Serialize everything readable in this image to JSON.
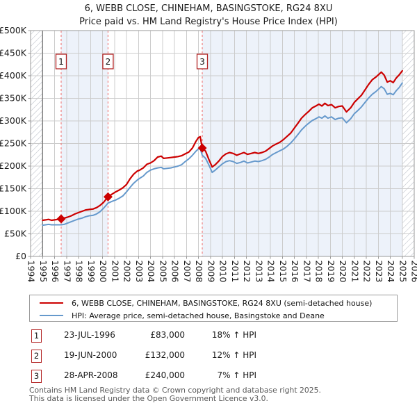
{
  "chart_data": {
    "type": "line",
    "title": "6, WEBB CLOSE, CHINEHAM, BASINGSTOKE, RG24 8XU",
    "subtitle": "Price paid vs. HM Land Registry's House Price Index (HPI)",
    "x_axis": {
      "min": 1994,
      "max": 2026,
      "ticks": [
        1994,
        1995,
        1996,
        1997,
        1998,
        1999,
        2000,
        2001,
        2002,
        2003,
        2004,
        2005,
        2006,
        2007,
        2008,
        2009,
        2010,
        2011,
        2012,
        2013,
        2014,
        2015,
        2016,
        2017,
        2018,
        2019,
        2020,
        2021,
        2022,
        2023,
        2024,
        2025,
        2026
      ]
    },
    "y_axis": {
      "min": 0,
      "max": 500,
      "unit": "GBP thousands",
      "tick_values": [
        0,
        50,
        100,
        150,
        200,
        250,
        300,
        350,
        400,
        450,
        500
      ],
      "tick_labels": [
        "£0",
        "£50K",
        "£100K",
        "£150K",
        "£200K",
        "£250K",
        "£300K",
        "£350K",
        "£400K",
        "£450K",
        "£500K"
      ]
    },
    "grid": true,
    "legend_position": "below",
    "series": [
      {
        "name": "6, WEBB CLOSE, CHINEHAM, BASINGSTOKE, RG24 8XU (semi-detached house)",
        "color": "#cc0000",
        "width": 2.2,
        "points": [
          [
            1995.0,
            80
          ],
          [
            1995.25,
            81
          ],
          [
            1995.5,
            82
          ],
          [
            1995.75,
            80
          ],
          [
            1996.0,
            81
          ],
          [
            1996.3,
            82
          ],
          [
            1996.55,
            83
          ],
          [
            1996.8,
            85
          ],
          [
            1997.1,
            87
          ],
          [
            1997.4,
            90
          ],
          [
            1997.7,
            94
          ],
          [
            1998.0,
            97
          ],
          [
            1998.3,
            100
          ],
          [
            1998.6,
            103
          ],
          [
            1998.9,
            104
          ],
          [
            1999.2,
            105
          ],
          [
            1999.5,
            108
          ],
          [
            1999.8,
            113
          ],
          [
            2000.1,
            120
          ],
          [
            2000.46,
            132
          ],
          [
            2000.8,
            138
          ],
          [
            2001.1,
            143
          ],
          [
            2001.4,
            147
          ],
          [
            2001.7,
            152
          ],
          [
            2002.0,
            159
          ],
          [
            2002.3,
            172
          ],
          [
            2002.6,
            182
          ],
          [
            2002.9,
            189
          ],
          [
            2003.1,
            191
          ],
          [
            2003.4,
            196
          ],
          [
            2003.7,
            204
          ],
          [
            2004.0,
            207
          ],
          [
            2004.3,
            212
          ],
          [
            2004.6,
            220
          ],
          [
            2004.9,
            222
          ],
          [
            2005.1,
            217
          ],
          [
            2005.4,
            218
          ],
          [
            2005.7,
            219
          ],
          [
            2006.0,
            220
          ],
          [
            2006.3,
            221
          ],
          [
            2006.6,
            223
          ],
          [
            2006.9,
            227
          ],
          [
            2007.2,
            231
          ],
          [
            2007.5,
            240
          ],
          [
            2007.8,
            255
          ],
          [
            2008.0,
            263
          ],
          [
            2008.15,
            265
          ],
          [
            2008.32,
            240
          ],
          [
            2008.6,
            233
          ],
          [
            2008.9,
            213
          ],
          [
            2009.15,
            198
          ],
          [
            2009.4,
            203
          ],
          [
            2009.7,
            211
          ],
          [
            2010.0,
            221
          ],
          [
            2010.3,
            227
          ],
          [
            2010.6,
            230
          ],
          [
            2010.9,
            228
          ],
          [
            2011.2,
            224
          ],
          [
            2011.5,
            227
          ],
          [
            2011.8,
            230
          ],
          [
            2012.1,
            226
          ],
          [
            2012.4,
            228
          ],
          [
            2012.7,
            230
          ],
          [
            2013.0,
            228
          ],
          [
            2013.3,
            230
          ],
          [
            2013.6,
            233
          ],
          [
            2013.9,
            239
          ],
          [
            2014.2,
            245
          ],
          [
            2014.5,
            249
          ],
          [
            2014.8,
            253
          ],
          [
            2015.1,
            259
          ],
          [
            2015.4,
            266
          ],
          [
            2015.7,
            273
          ],
          [
            2016.0,
            284
          ],
          [
            2016.3,
            295
          ],
          [
            2016.6,
            306
          ],
          [
            2016.9,
            314
          ],
          [
            2017.2,
            321
          ],
          [
            2017.5,
            329
          ],
          [
            2017.8,
            333
          ],
          [
            2018.05,
            337
          ],
          [
            2018.3,
            333
          ],
          [
            2018.55,
            339
          ],
          [
            2018.8,
            334
          ],
          [
            2019.1,
            336
          ],
          [
            2019.4,
            329
          ],
          [
            2019.7,
            332
          ],
          [
            2020.0,
            333
          ],
          [
            2020.35,
            320
          ],
          [
            2020.7,
            329
          ],
          [
            2021.0,
            341
          ],
          [
            2021.3,
            349
          ],
          [
            2021.6,
            357
          ],
          [
            2021.9,
            369
          ],
          [
            2022.2,
            381
          ],
          [
            2022.5,
            391
          ],
          [
            2022.8,
            397
          ],
          [
            2023.05,
            403
          ],
          [
            2023.25,
            408
          ],
          [
            2023.5,
            401
          ],
          [
            2023.75,
            386
          ],
          [
            2024.0,
            389
          ],
          [
            2024.25,
            385
          ],
          [
            2024.5,
            395
          ],
          [
            2024.75,
            402
          ],
          [
            2025.0,
            411
          ]
        ]
      },
      {
        "name": "HPI: Average price, semi-detached house, Basingstoke and Deane",
        "color": "#6699cc",
        "width": 2.0,
        "points": [
          [
            1995.0,
            69
          ],
          [
            1995.25,
            70
          ],
          [
            1995.5,
            71
          ],
          [
            1995.75,
            70
          ],
          [
            1996.0,
            70
          ],
          [
            1996.3,
            70
          ],
          [
            1996.55,
            70
          ],
          [
            1996.8,
            71
          ],
          [
            1997.1,
            74
          ],
          [
            1997.4,
            77
          ],
          [
            1997.7,
            80
          ],
          [
            1998.0,
            83
          ],
          [
            1998.3,
            85
          ],
          [
            1998.6,
            88
          ],
          [
            1998.9,
            90
          ],
          [
            1999.2,
            91
          ],
          [
            1999.5,
            94
          ],
          [
            1999.8,
            99
          ],
          [
            2000.1,
            107
          ],
          [
            2000.46,
            118
          ],
          [
            2000.8,
            122
          ],
          [
            2001.1,
            125
          ],
          [
            2001.4,
            129
          ],
          [
            2001.7,
            134
          ],
          [
            2002.0,
            143
          ],
          [
            2002.3,
            153
          ],
          [
            2002.6,
            162
          ],
          [
            2002.9,
            169
          ],
          [
            2003.1,
            173
          ],
          [
            2003.4,
            178
          ],
          [
            2003.7,
            186
          ],
          [
            2004.0,
            191
          ],
          [
            2004.3,
            194
          ],
          [
            2004.6,
            196
          ],
          [
            2004.9,
            197
          ],
          [
            2005.1,
            194
          ],
          [
            2005.4,
            195
          ],
          [
            2005.7,
            196
          ],
          [
            2006.0,
            198
          ],
          [
            2006.3,
            200
          ],
          [
            2006.6,
            203
          ],
          [
            2006.9,
            210
          ],
          [
            2007.2,
            216
          ],
          [
            2007.5,
            224
          ],
          [
            2007.8,
            233
          ],
          [
            2008.0,
            238
          ],
          [
            2008.15,
            239
          ],
          [
            2008.32,
            224
          ],
          [
            2008.6,
            217
          ],
          [
            2008.9,
            201
          ],
          [
            2009.15,
            186
          ],
          [
            2009.4,
            191
          ],
          [
            2009.7,
            198
          ],
          [
            2010.0,
            205
          ],
          [
            2010.3,
            210
          ],
          [
            2010.6,
            212
          ],
          [
            2010.9,
            210
          ],
          [
            2011.2,
            206
          ],
          [
            2011.5,
            208
          ],
          [
            2011.8,
            211
          ],
          [
            2012.1,
            207
          ],
          [
            2012.4,
            209
          ],
          [
            2012.7,
            211
          ],
          [
            2013.0,
            210
          ],
          [
            2013.3,
            212
          ],
          [
            2013.6,
            215
          ],
          [
            2013.9,
            220
          ],
          [
            2014.2,
            226
          ],
          [
            2014.5,
            230
          ],
          [
            2014.8,
            234
          ],
          [
            2015.1,
            238
          ],
          [
            2015.4,
            244
          ],
          [
            2015.7,
            251
          ],
          [
            2016.0,
            260
          ],
          [
            2016.3,
            270
          ],
          [
            2016.6,
            280
          ],
          [
            2016.9,
            288
          ],
          [
            2017.2,
            295
          ],
          [
            2017.5,
            301
          ],
          [
            2017.8,
            305
          ],
          [
            2018.05,
            309
          ],
          [
            2018.3,
            306
          ],
          [
            2018.55,
            311
          ],
          [
            2018.8,
            306
          ],
          [
            2019.1,
            309
          ],
          [
            2019.4,
            303
          ],
          [
            2019.7,
            306
          ],
          [
            2020.0,
            307
          ],
          [
            2020.35,
            296
          ],
          [
            2020.7,
            305
          ],
          [
            2021.0,
            316
          ],
          [
            2021.3,
            323
          ],
          [
            2021.6,
            331
          ],
          [
            2021.9,
            341
          ],
          [
            2022.2,
            351
          ],
          [
            2022.5,
            359
          ],
          [
            2022.8,
            365
          ],
          [
            2023.05,
            371
          ],
          [
            2023.25,
            376
          ],
          [
            2023.5,
            371
          ],
          [
            2023.75,
            359
          ],
          [
            2024.0,
            361
          ],
          [
            2024.25,
            358
          ],
          [
            2024.5,
            367
          ],
          [
            2024.75,
            374
          ],
          [
            2025.0,
            384
          ]
        ]
      }
    ],
    "sales": [
      {
        "num": "1",
        "x": 1996.55,
        "y": 83
      },
      {
        "num": "2",
        "x": 2000.46,
        "y": 132
      },
      {
        "num": "3",
        "x": 2008.32,
        "y": 240
      }
    ],
    "shaded_bands": [
      [
        1996.55,
        2000.46
      ],
      [
        2008.32,
        2025.0
      ]
    ],
    "hatched_bands": [
      [
        1994,
        1995
      ],
      [
        2025.0,
        2026
      ]
    ],
    "colors": {
      "band": "#edf2fa",
      "grid": "#cccccc",
      "border": "#999999",
      "dashed": "#f08080",
      "marker": "#cc0000",
      "box_border": "#b22222",
      "hatch": "#b9bec7",
      "data_start_line": "#808080",
      "tick": "#999999",
      "axis_text": "#1a1a1a"
    }
  },
  "legend": {
    "items": [
      {
        "label": "6, WEBB CLOSE, CHINEHAM, BASINGSTOKE, RG24 8XU (semi-detached house)",
        "color": "#cc0000"
      },
      {
        "label": "HPI: Average price, semi-detached house, Basingstoke and Deane",
        "color": "#6699cc"
      }
    ]
  },
  "transactions": [
    {
      "num": "1",
      "date": "23-JUL-1996",
      "price": "£83,000",
      "hpi": "18% ↑ HPI"
    },
    {
      "num": "2",
      "date": "19-JUN-2000",
      "price": "£132,000",
      "hpi": "12% ↑ HPI"
    },
    {
      "num": "3",
      "date": "28-APR-2008",
      "price": "£240,000",
      "hpi": "7% ↑ HPI"
    }
  ],
  "footer": {
    "line1": "Contains HM Land Registry data © Crown copyright and database right 2025.",
    "line2": "This data is licensed under the Open Government Licence v3.0."
  }
}
